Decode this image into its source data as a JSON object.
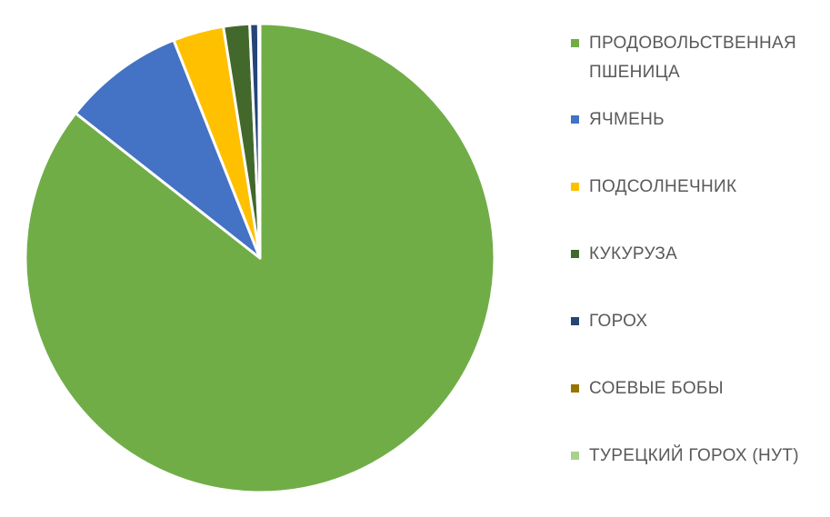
{
  "chart_data": {
    "type": "pie",
    "title": "",
    "legend_position": "right",
    "start_angle_deg": 0,
    "direction": "clockwise",
    "slices": [
      {
        "label": "ПРОДОВОЛЬСТВЕННАЯ ПШЕНИЦА",
        "value": 85.6,
        "color": "#70AD47"
      },
      {
        "label": "ЯЧМЕНЬ",
        "value": 8.4,
        "color": "#4472C4"
      },
      {
        "label": "ПОДСОЛНЕЧНИК",
        "value": 3.5,
        "color": "#FFC000"
      },
      {
        "label": "КУКУРУЗА",
        "value": 1.8,
        "color": "#43682B"
      },
      {
        "label": "ГОРОХ",
        "value": 0.6,
        "color": "#264478"
      },
      {
        "label": "СОЕВЫЕ БОБЫ",
        "value": 0.05,
        "color": "#997300"
      },
      {
        "label": "ТУРЕЦКИЙ ГОРОХ (НУТ)",
        "value": 0.05,
        "color": "#A9D18E"
      }
    ]
  }
}
